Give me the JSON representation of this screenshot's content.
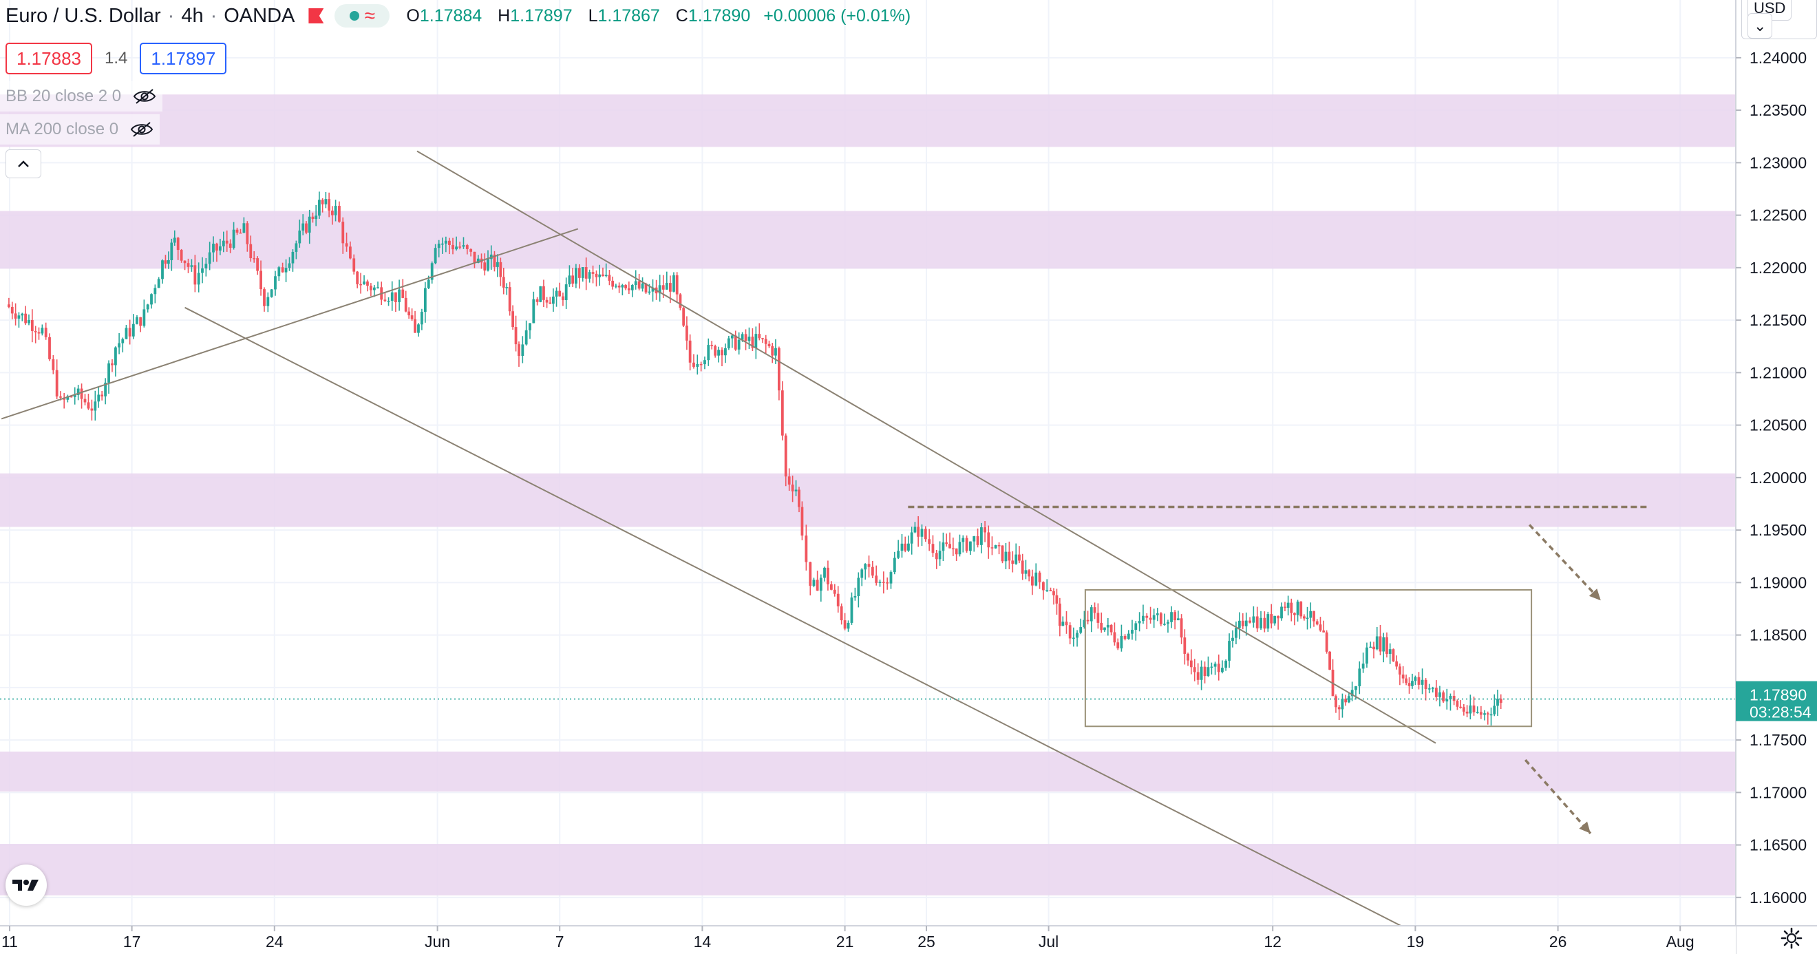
{
  "header": {
    "symbol": "Euro / U.S. Dollar",
    "interval": "4h",
    "exchange": "OANDA",
    "ohlc": {
      "o_label": "O",
      "o": "1.17884",
      "h_label": "H",
      "h": "1.17897",
      "l_label": "L",
      "l": "1.17867",
      "c_label": "C",
      "c": "1.17890",
      "change": "+0.00006 (+0.01%)"
    },
    "sell_price": "1.17883",
    "spread": "1.4",
    "buy_price": "1.17897"
  },
  "indicators": [
    {
      "label": "BB 20 close 2 0",
      "icon": "eye-off-icon"
    },
    {
      "label": "MA 200 close 0",
      "icon": "eye-off-icon"
    }
  ],
  "currency": "USD",
  "last_price": {
    "price": "1.17890",
    "countdown": "03:28:54"
  },
  "colors": {
    "up": "#26a69a",
    "down": "#f0555e",
    "zone": "#e9d5ee",
    "line": "#8b8273",
    "arrow": "#8b7a64",
    "accent": "#2962ff"
  },
  "chart_data": {
    "type": "candlestick",
    "timeframe": "4h",
    "y_ticks": [
      "1.24000",
      "1.23500",
      "1.23000",
      "1.22500",
      "1.22000",
      "1.21500",
      "1.21000",
      "1.20500",
      "1.20000",
      "1.19500",
      "1.19000",
      "1.18500",
      "1.18000",
      "1.17500",
      "1.17000",
      "1.16500",
      "1.16000"
    ],
    "y_tick_values": [
      1.24,
      1.235,
      1.23,
      1.225,
      1.22,
      1.215,
      1.21,
      1.205,
      1.2,
      1.195,
      1.19,
      1.185,
      1.18,
      1.175,
      1.17,
      1.165,
      1.16
    ],
    "ylim": [
      1.1573,
      1.2455
    ],
    "x_ticks": [
      {
        "label": "11",
        "x": 0.2
      },
      {
        "label": "17",
        "x": 6.2
      },
      {
        "label": "24",
        "x": 13.2
      },
      {
        "label": "Jun",
        "x": 21.2
      },
      {
        "label": "7",
        "x": 27.2
      },
      {
        "label": "14",
        "x": 34.2
      },
      {
        "label": "21",
        "x": 41.2
      },
      {
        "label": "25",
        "x": 45.2
      },
      {
        "label": "Jul",
        "x": 51.2
      },
      {
        "label": "12",
        "x": 62.2
      },
      {
        "label": "19",
        "x": 69.2
      },
      {
        "label": "26",
        "x": 76.2
      },
      {
        "label": "Aug",
        "x": 82.2
      }
    ],
    "xlim": [
      0,
      84
    ],
    "zones": [
      [
        1.2315,
        1.2365
      ],
      [
        1.2199,
        1.2254
      ],
      [
        1.1953,
        1.2004
      ],
      [
        1.1701,
        1.1739
      ],
      [
        1.1602,
        1.1651
      ]
    ],
    "trendlines": [
      {
        "x1": 20.2,
        "y1": 1.2311,
        "x2": 70.2,
        "y2": 1.1747
      },
      {
        "x1": 8.8,
        "y1": 1.2162,
        "x2": 69.0,
        "y2": 1.1568
      },
      {
        "x1": -0.2,
        "y1": 1.2056,
        "x2": 28.1,
        "y2": 1.2237
      }
    ],
    "resistance_line": {
      "x1": 44.3,
      "x2": 80.6,
      "y": 1.1972
    },
    "range_box": {
      "x1": 53.0,
      "x2": 74.9,
      "y1": 1.1763,
      "y2": 1.1893
    },
    "projection_arrows": [
      {
        "x1": 74.8,
        "y1": 1.1955,
        "x2": 78.3,
        "y2": 1.1883
      },
      {
        "x1": 74.6,
        "y1": 1.1731,
        "x2": 77.8,
        "y2": 1.1661
      }
    ],
    "anchors": [
      [
        0,
        1.2165
      ],
      [
        1.8,
        1.214
      ],
      [
        2.7,
        1.207
      ],
      [
        3.4,
        1.208
      ],
      [
        4.4,
        1.2065
      ],
      [
        5.4,
        1.2125
      ],
      [
        6.8,
        1.2155
      ],
      [
        7.7,
        1.2205
      ],
      [
        8.3,
        1.2225
      ],
      [
        9.3,
        1.219
      ],
      [
        10.2,
        1.2215
      ],
      [
        11.7,
        1.2235
      ],
      [
        12.7,
        1.217
      ],
      [
        13.6,
        1.22
      ],
      [
        14.6,
        1.2235
      ],
      [
        15.4,
        1.226
      ],
      [
        16.2,
        1.2255
      ],
      [
        17.1,
        1.219
      ],
      [
        18.1,
        1.218
      ],
      [
        19.5,
        1.217
      ],
      [
        20.1,
        1.2135
      ],
      [
        21.1,
        1.2225
      ],
      [
        22.3,
        1.222
      ],
      [
        23.2,
        1.2205
      ],
      [
        24.0,
        1.2205
      ],
      [
        24.6,
        1.218
      ],
      [
        25.2,
        1.212
      ],
      [
        26.1,
        1.2175
      ],
      [
        27.2,
        1.217
      ],
      [
        28.0,
        1.2195
      ],
      [
        29.0,
        1.219
      ],
      [
        30.6,
        1.2185
      ],
      [
        31.6,
        1.2175
      ],
      [
        32.8,
        1.2185
      ],
      [
        33.6,
        1.211
      ],
      [
        34.5,
        1.212
      ],
      [
        36.0,
        1.213
      ],
      [
        37.0,
        1.213
      ],
      [
        37.8,
        1.212
      ],
      [
        38.3,
        1.2
      ],
      [
        38.8,
        1.199
      ],
      [
        39.1,
        1.195
      ],
      [
        39.5,
        1.189
      ],
      [
        40.2,
        1.191
      ],
      [
        41.2,
        1.186
      ],
      [
        42.2,
        1.1915
      ],
      [
        43.1,
        1.19
      ],
      [
        44.0,
        1.1935
      ],
      [
        44.8,
        1.195
      ],
      [
        45.7,
        1.193
      ],
      [
        47.0,
        1.1935
      ],
      [
        47.9,
        1.1945
      ],
      [
        48.6,
        1.193
      ],
      [
        49.6,
        1.192
      ],
      [
        50.4,
        1.1905
      ],
      [
        51.3,
        1.1895
      ],
      [
        51.9,
        1.1855
      ],
      [
        52.6,
        1.185
      ],
      [
        53.3,
        1.187
      ],
      [
        54.6,
        1.1845
      ],
      [
        55.3,
        1.186
      ],
      [
        56.2,
        1.1865
      ],
      [
        57.4,
        1.187
      ],
      [
        58.2,
        1.1815
      ],
      [
        59.2,
        1.1815
      ],
      [
        59.9,
        1.183
      ],
      [
        60.9,
        1.187
      ],
      [
        61.8,
        1.186
      ],
      [
        62.8,
        1.188
      ],
      [
        63.9,
        1.187
      ],
      [
        64.7,
        1.1845
      ],
      [
        65.3,
        1.178
      ],
      [
        66.1,
        1.1795
      ],
      [
        67.0,
        1.1845
      ],
      [
        67.8,
        1.184
      ],
      [
        68.6,
        1.181
      ],
      [
        69.2,
        1.1805
      ],
      [
        70.4,
        1.1795
      ],
      [
        71.1,
        1.1785
      ],
      [
        71.9,
        1.1775
      ],
      [
        72.6,
        1.1775
      ],
      [
        73.4,
        1.1789
      ]
    ],
    "last_value": 1.1789
  }
}
